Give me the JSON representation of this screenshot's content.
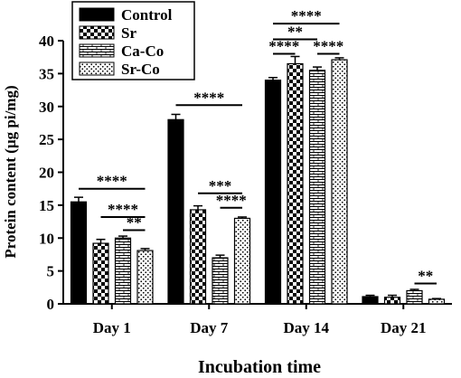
{
  "chart_data": {
    "type": "bar",
    "title": "",
    "xlabel": "Incubation time",
    "ylabel": "Protein content (µg pi/mg)",
    "ylim": [
      0,
      40
    ],
    "yticks": [
      0,
      5,
      10,
      15,
      20,
      25,
      30,
      35,
      40
    ],
    "categories": [
      "Day 1",
      "Day 7",
      "Day 14",
      "Day 21"
    ],
    "legend_position": "top-left",
    "grid": false,
    "series": [
      {
        "name": "Control",
        "pattern": "solid",
        "values": [
          15.5,
          28.0,
          34.0,
          1.1
        ],
        "errors": [
          0.7,
          0.8,
          0.4,
          0.2
        ]
      },
      {
        "name": "Sr",
        "pattern": "checker",
        "values": [
          9.2,
          14.3,
          36.5,
          1.0
        ],
        "errors": [
          0.6,
          0.6,
          1.1,
          0.3
        ]
      },
      {
        "name": "Ca-Co",
        "pattern": "brick",
        "values": [
          10.0,
          7.0,
          35.5,
          2.0
        ],
        "errors": [
          0.3,
          0.4,
          0.5,
          0.2
        ]
      },
      {
        "name": "Sr-Co",
        "pattern": "dots",
        "values": [
          8.1,
          13.0,
          37.1,
          0.7
        ],
        "errors": [
          0.3,
          0.2,
          0.3,
          0.1
        ]
      }
    ],
    "annotations": [
      {
        "label": "****",
        "category": 0,
        "from": 0,
        "to": 3,
        "y": 17.5
      },
      {
        "label": "****",
        "category": 0,
        "from": 1,
        "to": 3,
        "y": 13.2
      },
      {
        "label": "**",
        "category": 0,
        "from": 2,
        "to": 3,
        "y": 11.2
      },
      {
        "label": "****",
        "category": 1,
        "from": 0,
        "to": 3,
        "y": 30.2
      },
      {
        "label": "***",
        "category": 1,
        "from": 1,
        "to": 3,
        "y": 16.8
      },
      {
        "label": "****",
        "category": 1,
        "from": 2,
        "to": 3,
        "y": 14.6
      },
      {
        "label": "****",
        "category": 2,
        "from": 0,
        "to": 3,
        "y": 42.6
      },
      {
        "label": "**",
        "category": 2,
        "from": 0,
        "to": 2,
        "y": 40.2
      },
      {
        "label": "****",
        "category": 2,
        "from": 0,
        "to": 1,
        "y": 38.0
      },
      {
        "label": "****",
        "category": 2,
        "from": 2,
        "to": 3,
        "y": 38.0
      },
      {
        "label": "**",
        "category": 3,
        "from": 2,
        "to": 3,
        "y": 3.1
      }
    ]
  }
}
